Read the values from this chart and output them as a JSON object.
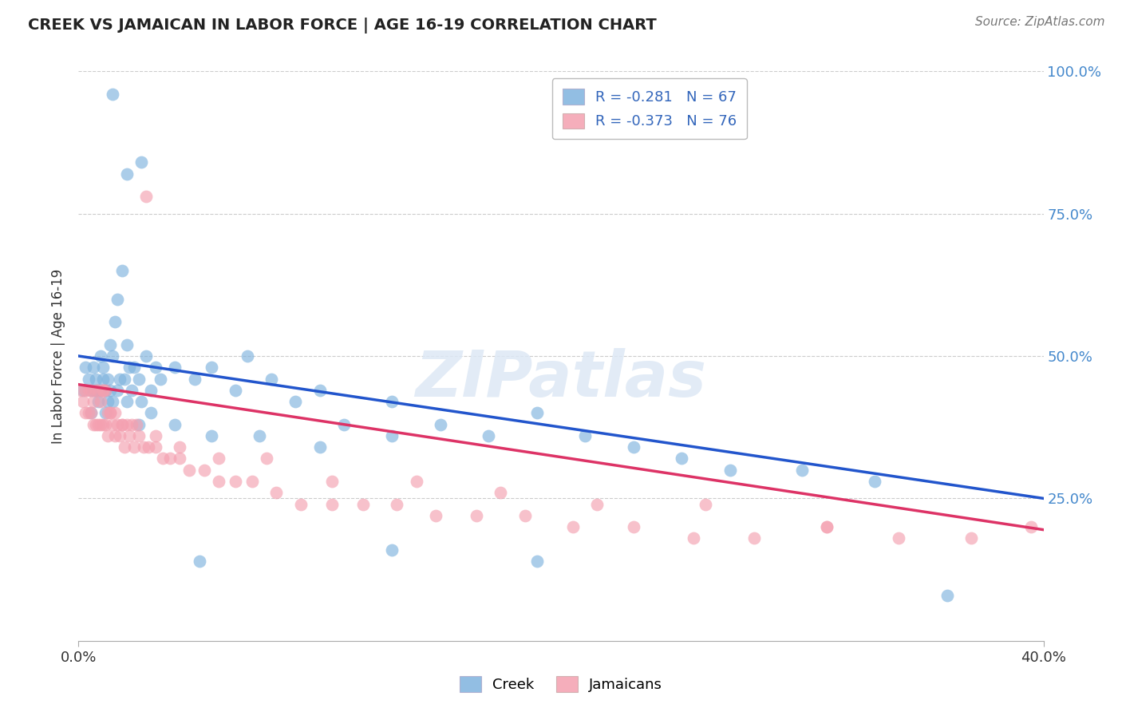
{
  "title": "CREEK VS JAMAICAN IN LABOR FORCE | AGE 16-19 CORRELATION CHART",
  "source": "Source: ZipAtlas.com",
  "ylabel_label": "In Labor Force | Age 16-19",
  "legend_creek": "Creek",
  "legend_jamaicans": "Jamaicans",
  "creek_R": "-0.281",
  "creek_N": "67",
  "jamaican_R": "-0.373",
  "jamaican_N": "76",
  "creek_color": "#7fb3de",
  "jamaican_color": "#f4a0b0",
  "creek_line_color": "#2255cc",
  "jamaican_line_color": "#dd3366",
  "background_color": "#ffffff",
  "watermark": "ZIPatlas",
  "xmin": 0.0,
  "xmax": 0.4,
  "ymin": 0.0,
  "ymax": 1.0,
  "yticks": [
    0.25,
    0.5,
    0.75,
    1.0
  ],
  "ytick_labels": [
    "25.0%",
    "50.0%",
    "75.0%",
    "100.0%"
  ],
  "xtick_labels": [
    "0.0%",
    "40.0%"
  ],
  "creek_line_x0": 0.0,
  "creek_line_y0": 0.5,
  "creek_line_x1": 0.4,
  "creek_line_y1": 0.25,
  "jamaican_line_x0": 0.0,
  "jamaican_line_y0": 0.45,
  "jamaican_line_x1": 0.4,
  "jamaican_line_y1": 0.195,
  "creek_x": [
    0.002,
    0.003,
    0.004,
    0.005,
    0.005,
    0.006,
    0.006,
    0.007,
    0.007,
    0.008,
    0.008,
    0.009,
    0.009,
    0.01,
    0.01,
    0.011,
    0.011,
    0.012,
    0.012,
    0.013,
    0.013,
    0.014,
    0.015,
    0.016,
    0.017,
    0.018,
    0.019,
    0.02,
    0.021,
    0.022,
    0.023,
    0.025,
    0.026,
    0.028,
    0.03,
    0.032,
    0.034,
    0.04,
    0.048,
    0.055,
    0.065,
    0.07,
    0.08,
    0.09,
    0.1,
    0.11,
    0.13,
    0.15,
    0.17,
    0.19,
    0.21,
    0.23,
    0.25,
    0.27,
    0.3,
    0.33,
    0.36,
    0.014,
    0.016,
    0.02,
    0.025,
    0.03,
    0.04,
    0.055,
    0.075,
    0.1,
    0.13
  ],
  "creek_y": [
    0.44,
    0.48,
    0.46,
    0.44,
    0.4,
    0.44,
    0.48,
    0.46,
    0.44,
    0.44,
    0.42,
    0.5,
    0.44,
    0.48,
    0.46,
    0.44,
    0.4,
    0.46,
    0.42,
    0.52,
    0.44,
    0.5,
    0.56,
    0.6,
    0.46,
    0.65,
    0.46,
    0.52,
    0.48,
    0.44,
    0.48,
    0.46,
    0.42,
    0.5,
    0.44,
    0.48,
    0.46,
    0.48,
    0.46,
    0.48,
    0.44,
    0.5,
    0.46,
    0.42,
    0.44,
    0.38,
    0.42,
    0.38,
    0.36,
    0.4,
    0.36,
    0.34,
    0.32,
    0.3,
    0.3,
    0.28,
    0.08,
    0.42,
    0.44,
    0.42,
    0.38,
    0.4,
    0.38,
    0.36,
    0.36,
    0.34,
    0.36
  ],
  "creek_outliers_x": [
    0.014,
    0.02,
    0.026,
    0.19,
    0.05,
    0.13
  ],
  "creek_outliers_y": [
    0.96,
    0.82,
    0.84,
    0.14,
    0.14,
    0.16
  ],
  "jamaican_x": [
    0.001,
    0.002,
    0.003,
    0.003,
    0.004,
    0.004,
    0.005,
    0.005,
    0.006,
    0.006,
    0.007,
    0.007,
    0.008,
    0.008,
    0.009,
    0.009,
    0.01,
    0.01,
    0.011,
    0.011,
    0.012,
    0.012,
    0.013,
    0.014,
    0.015,
    0.015,
    0.016,
    0.017,
    0.018,
    0.019,
    0.02,
    0.021,
    0.022,
    0.023,
    0.025,
    0.027,
    0.029,
    0.032,
    0.035,
    0.038,
    0.042,
    0.046,
    0.052,
    0.058,
    0.065,
    0.072,
    0.082,
    0.092,
    0.105,
    0.118,
    0.132,
    0.148,
    0.165,
    0.185,
    0.205,
    0.23,
    0.255,
    0.28,
    0.31,
    0.34,
    0.37,
    0.395,
    0.01,
    0.013,
    0.018,
    0.024,
    0.032,
    0.042,
    0.058,
    0.078,
    0.105,
    0.14,
    0.175,
    0.215,
    0.26,
    0.31
  ],
  "jamaican_y": [
    0.44,
    0.42,
    0.44,
    0.4,
    0.44,
    0.4,
    0.44,
    0.4,
    0.42,
    0.38,
    0.44,
    0.38,
    0.44,
    0.38,
    0.42,
    0.38,
    0.44,
    0.38,
    0.44,
    0.38,
    0.4,
    0.36,
    0.4,
    0.38,
    0.4,
    0.36,
    0.38,
    0.36,
    0.38,
    0.34,
    0.38,
    0.36,
    0.38,
    0.34,
    0.36,
    0.34,
    0.34,
    0.34,
    0.32,
    0.32,
    0.32,
    0.3,
    0.3,
    0.28,
    0.28,
    0.28,
    0.26,
    0.24,
    0.24,
    0.24,
    0.24,
    0.22,
    0.22,
    0.22,
    0.2,
    0.2,
    0.18,
    0.18,
    0.2,
    0.18,
    0.18,
    0.2,
    0.44,
    0.4,
    0.38,
    0.38,
    0.36,
    0.34,
    0.32,
    0.32,
    0.28,
    0.28,
    0.26,
    0.24,
    0.24,
    0.2
  ],
  "jamaican_outlier_x": [
    0.028
  ],
  "jamaican_outlier_y": [
    0.78
  ]
}
